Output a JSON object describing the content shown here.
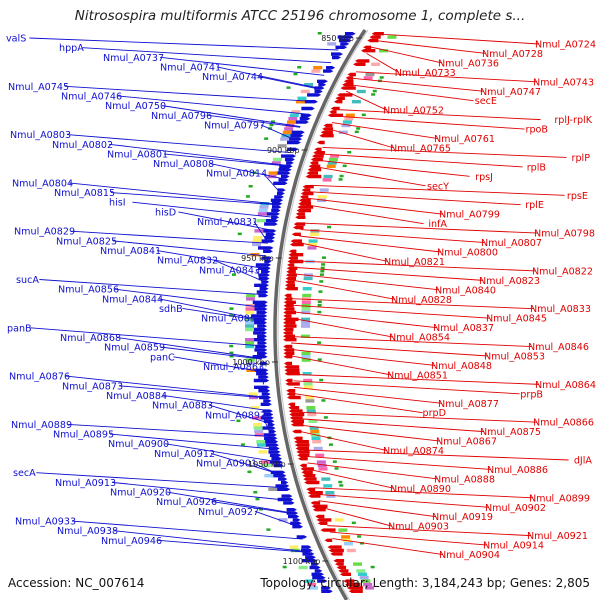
{
  "title": "Nitrosospira multiformis ATCC 25196 chromosome 1, complete s...",
  "footer": {
    "accession": "Accession: NC_007614",
    "topology": "Topology: circular; Length: 3,184,243 bp; Genes: 2,805"
  },
  "colors": {
    "forward": "#1010d0",
    "reverse": "#e00000",
    "backbone": "#666666"
  },
  "ticks": [
    "850 kbp",
    "900 kbp",
    "950 kbp",
    "1000 kbp",
    "1050 kbp",
    "1100 kbp"
  ],
  "forward_genes": [
    "valS",
    "hppA",
    "Nmul_A0737",
    "Nmul_A0741",
    "Nmul_A0744",
    "Nmul_A0745",
    "Nmul_A0746",
    "Nmul_A0750",
    "Nmul_A0796",
    "Nmul_A0797",
    "Nmul_A0803",
    "Nmul_A0802",
    "Nmul_A0801",
    "Nmul_A0808",
    "Nmul_A0814",
    "Nmul_A0804",
    "Nmul_A0815",
    "hisI",
    "hisD",
    "Nmul_A0831",
    "Nmul_A0829",
    "Nmul_A0825",
    "Nmul_A0841",
    "Nmul_A0832",
    "Nmul_A0843",
    "sucA",
    "Nmul_A0856",
    "Nmul_A0844",
    "sdhB",
    "Nmul_A0855",
    "panB",
    "Nmul_A0868",
    "Nmul_A0859",
    "panC",
    "Nmul_A0863",
    "Nmul_A0876",
    "Nmul_A0873",
    "Nmul_A0884",
    "Nmul_A0883",
    "Nmul_A0897",
    "Nmul_A0889",
    "Nmul_A0895",
    "Nmul_A0900",
    "Nmul_A0912",
    "Nmul_A0901",
    "secA",
    "Nmul_A0913",
    "Nmul_A0920",
    "Nmul_A0926",
    "Nmul_A0927",
    "Nmul_A0933",
    "Nmul_A0938",
    "Nmul_A0946"
  ],
  "reverse_genes": [
    "Nmul_A0724",
    "Nmul_A0728",
    "Nmul_A0736",
    "Nmul_A0733",
    "Nmul_A0743",
    "Nmul_A0747",
    "secE",
    "Nmul_A0752",
    "rplJ-rplK",
    "rpoB",
    "Nmul_A0761",
    "Nmul_A0765",
    "rplP",
    "rplB",
    "rpsJ",
    "secY",
    "rpsE",
    "rplE",
    "Nmul_A0799",
    "infA",
    "Nmul_A0798",
    "Nmul_A0807",
    "Nmul_A0800",
    "Nmul_A0821",
    "Nmul_A0822",
    "Nmul_A0823",
    "Nmul_A0840",
    "Nmul_A0828",
    "Nmul_A0833",
    "Nmul_A0845",
    "Nmul_A0837",
    "Nmul_A0854",
    "Nmul_A0846",
    "Nmul_A0853",
    "Nmul_A0848",
    "Nmul_A0851",
    "Nmul_A0864",
    "prpB",
    "Nmul_A0877",
    "prpD",
    "Nmul_A0866",
    "Nmul_A0875",
    "Nmul_A0867",
    "Nmul_A0874",
    "dJlA",
    "Nmul_A0886",
    "Nmul_A0888",
    "Nmul_A0890",
    "Nmul_A0899",
    "Nmul_A0902",
    "Nmul_A0919",
    "Nmul_A0903",
    "Nmul_A0921",
    "Nmul_A0914",
    "Nmul_A0904"
  ]
}
